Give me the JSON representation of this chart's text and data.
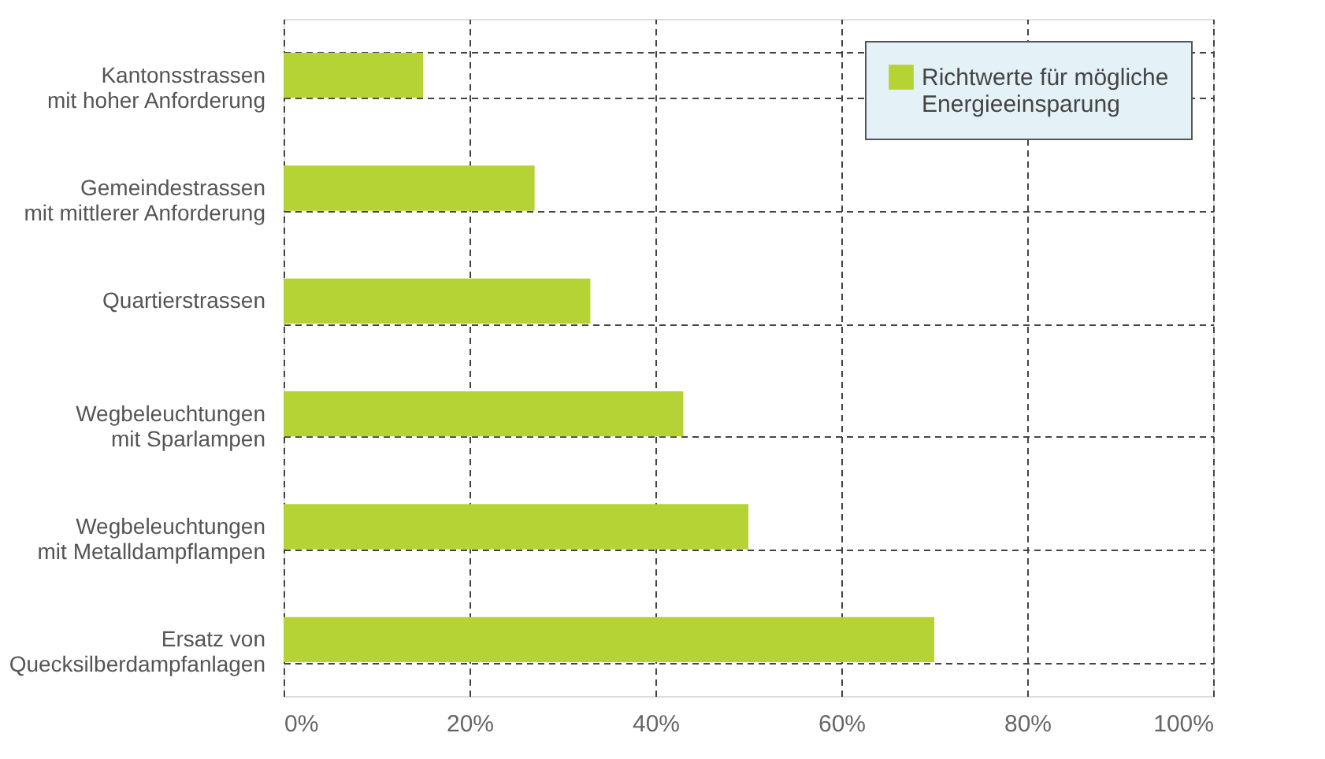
{
  "chart_data": {
    "type": "bar",
    "orientation": "horizontal",
    "categories": [
      "Kantonsstrassen\nmit hoher Anforderung",
      "Gemeindestrassen\nmit mittlerer Anforderung",
      "Quartierstrassen",
      "Wegbeleuchtungen\nmit Sparlampen",
      "Wegbeleuchtungen\nmit Metalldampflampen",
      "Ersatz von\nQuecksilberdampfanlagen"
    ],
    "series": [
      {
        "name": "Richtwerte für mögliche\nEnergieeinsparung",
        "color": "#b5d334",
        "values": [
          15,
          27,
          33,
          43,
          50,
          70
        ]
      }
    ],
    "xlim": [
      0,
      100
    ],
    "xticks": [
      {
        "value": 0,
        "label": "0%"
      },
      {
        "value": 20,
        "label": "20%"
      },
      {
        "value": 40,
        "label": "40%"
      },
      {
        "value": 60,
        "label": "60%"
      },
      {
        "value": 80,
        "label": "80%"
      },
      {
        "value": 100,
        "label": "100%"
      }
    ],
    "grid": true,
    "legend": "top right"
  }
}
